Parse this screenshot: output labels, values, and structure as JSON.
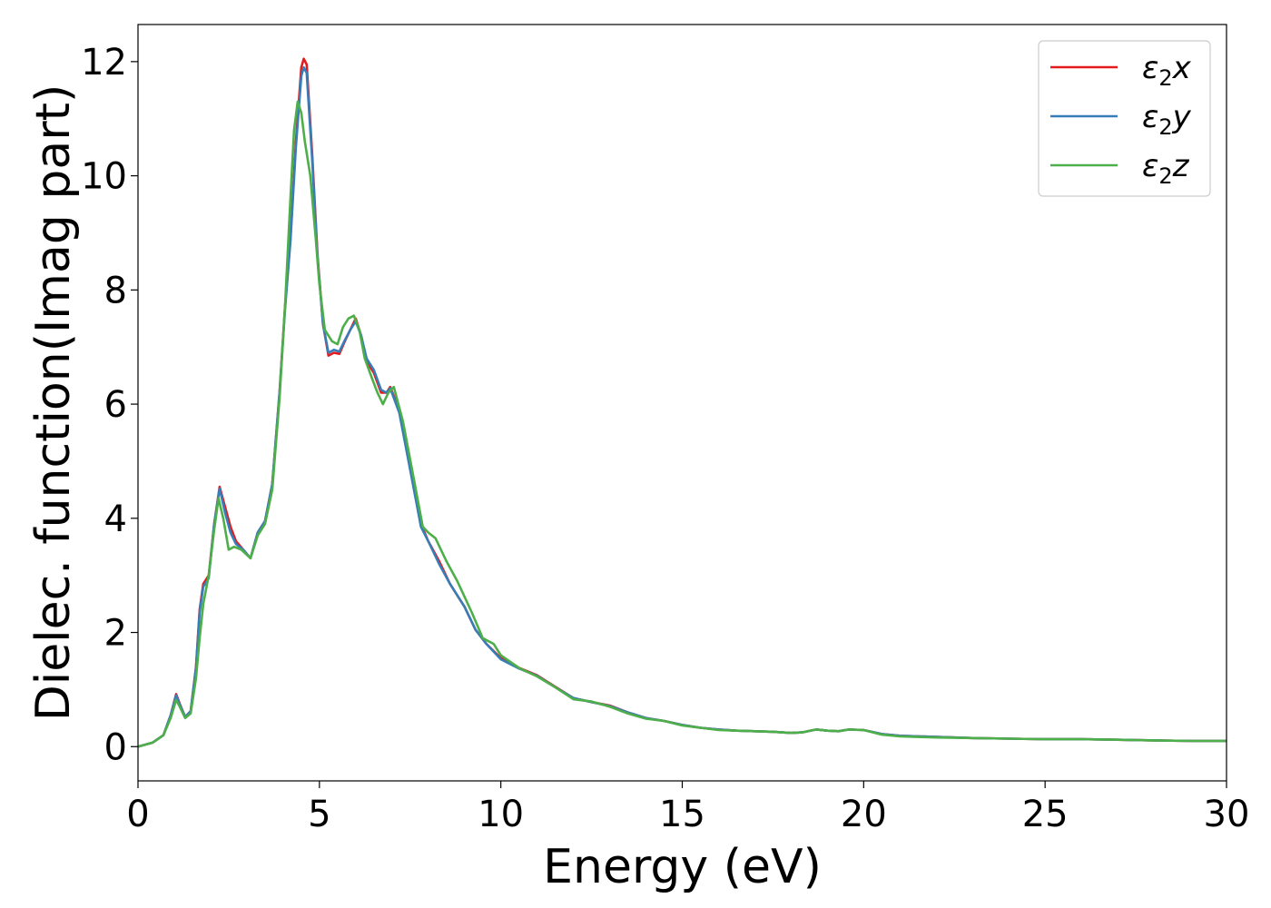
{
  "chart_data": {
    "type": "line",
    "title": "",
    "xlabel": "Energy (eV)",
    "ylabel": "Dielec. function(Imag part)",
    "xlim": [
      0,
      30
    ],
    "ylim": [
      -0.6,
      12.65
    ],
    "xticks": [
      0,
      5,
      10,
      15,
      20,
      25,
      30
    ],
    "yticks": [
      0,
      2,
      4,
      6,
      8,
      10,
      12
    ],
    "grid": false,
    "legend_position": "top-right",
    "series": [
      {
        "name": "ε₂x",
        "legend_base": "ε",
        "legend_sub": "2",
        "legend_var": "x",
        "color": "#e41a1c",
        "points": [
          [
            0,
            0.0
          ],
          [
            0.4,
            0.07
          ],
          [
            0.7,
            0.2
          ],
          [
            0.9,
            0.55
          ],
          [
            1.05,
            0.92
          ],
          [
            1.15,
            0.75
          ],
          [
            1.3,
            0.52
          ],
          [
            1.45,
            0.62
          ],
          [
            1.6,
            1.4
          ],
          [
            1.7,
            2.4
          ],
          [
            1.8,
            2.85
          ],
          [
            1.95,
            3.0
          ],
          [
            2.1,
            3.9
          ],
          [
            2.25,
            4.55
          ],
          [
            2.4,
            4.2
          ],
          [
            2.55,
            3.85
          ],
          [
            2.7,
            3.6
          ],
          [
            2.9,
            3.45
          ],
          [
            3.1,
            3.3
          ],
          [
            3.3,
            3.75
          ],
          [
            3.5,
            3.95
          ],
          [
            3.7,
            4.6
          ],
          [
            3.9,
            6.2
          ],
          [
            4.05,
            7.7
          ],
          [
            4.2,
            8.9
          ],
          [
            4.35,
            10.6
          ],
          [
            4.5,
            11.9
          ],
          [
            4.57,
            12.05
          ],
          [
            4.65,
            11.95
          ],
          [
            4.8,
            10.4
          ],
          [
            4.95,
            8.6
          ],
          [
            5.1,
            7.4
          ],
          [
            5.25,
            6.85
          ],
          [
            5.4,
            6.9
          ],
          [
            5.55,
            6.88
          ],
          [
            5.7,
            7.1
          ],
          [
            5.85,
            7.3
          ],
          [
            6.0,
            7.5
          ],
          [
            6.15,
            7.2
          ],
          [
            6.3,
            6.75
          ],
          [
            6.5,
            6.55
          ],
          [
            6.7,
            6.2
          ],
          [
            6.85,
            6.2
          ],
          [
            6.95,
            6.3
          ],
          [
            7.2,
            5.9
          ],
          [
            7.5,
            4.9
          ],
          [
            7.8,
            3.9
          ],
          [
            8.0,
            3.6
          ],
          [
            8.3,
            3.25
          ],
          [
            8.6,
            2.85
          ],
          [
            9.0,
            2.45
          ],
          [
            9.3,
            2.05
          ],
          [
            9.6,
            1.8
          ],
          [
            10.0,
            1.55
          ],
          [
            10.5,
            1.38
          ],
          [
            11.0,
            1.25
          ],
          [
            11.5,
            1.05
          ],
          [
            12.0,
            0.85
          ],
          [
            12.5,
            0.78
          ],
          [
            13.0,
            0.72
          ],
          [
            13.5,
            0.6
          ],
          [
            14.0,
            0.5
          ],
          [
            14.5,
            0.45
          ],
          [
            15.0,
            0.38
          ],
          [
            15.5,
            0.33
          ],
          [
            16.0,
            0.3
          ],
          [
            16.5,
            0.28
          ],
          [
            17.0,
            0.27
          ],
          [
            17.5,
            0.26
          ],
          [
            18.0,
            0.24
          ],
          [
            18.3,
            0.25
          ],
          [
            18.7,
            0.3
          ],
          [
            19.0,
            0.28
          ],
          [
            19.3,
            0.27
          ],
          [
            19.6,
            0.3
          ],
          [
            20.0,
            0.29
          ],
          [
            20.5,
            0.22
          ],
          [
            21.0,
            0.19
          ],
          [
            22.0,
            0.17
          ],
          [
            23.0,
            0.15
          ],
          [
            24.0,
            0.14
          ],
          [
            25.0,
            0.13
          ],
          [
            26.0,
            0.13
          ],
          [
            27.0,
            0.12
          ],
          [
            28.0,
            0.11
          ],
          [
            29.0,
            0.1
          ],
          [
            30.0,
            0.1
          ]
        ]
      },
      {
        "name": "ε₂y",
        "legend_base": "ε",
        "legend_sub": "2",
        "legend_var": "y",
        "color": "#377eb8",
        "points": [
          [
            0,
            0.0
          ],
          [
            0.4,
            0.07
          ],
          [
            0.7,
            0.2
          ],
          [
            0.9,
            0.55
          ],
          [
            1.05,
            0.9
          ],
          [
            1.15,
            0.74
          ],
          [
            1.3,
            0.52
          ],
          [
            1.45,
            0.62
          ],
          [
            1.6,
            1.38
          ],
          [
            1.7,
            2.35
          ],
          [
            1.8,
            2.8
          ],
          [
            1.95,
            2.95
          ],
          [
            2.1,
            3.9
          ],
          [
            2.25,
            4.52
          ],
          [
            2.4,
            4.1
          ],
          [
            2.55,
            3.75
          ],
          [
            2.7,
            3.55
          ],
          [
            2.9,
            3.45
          ],
          [
            3.1,
            3.3
          ],
          [
            3.3,
            3.75
          ],
          [
            3.5,
            3.95
          ],
          [
            3.7,
            4.6
          ],
          [
            3.9,
            6.2
          ],
          [
            4.05,
            7.65
          ],
          [
            4.2,
            8.85
          ],
          [
            4.35,
            10.5
          ],
          [
            4.5,
            11.75
          ],
          [
            4.57,
            11.9
          ],
          [
            4.65,
            11.8
          ],
          [
            4.8,
            10.3
          ],
          [
            4.95,
            8.55
          ],
          [
            5.1,
            7.4
          ],
          [
            5.25,
            6.9
          ],
          [
            5.4,
            6.95
          ],
          [
            5.55,
            6.92
          ],
          [
            5.7,
            7.12
          ],
          [
            5.85,
            7.3
          ],
          [
            6.0,
            7.45
          ],
          [
            6.15,
            7.2
          ],
          [
            6.3,
            6.8
          ],
          [
            6.5,
            6.6
          ],
          [
            6.7,
            6.25
          ],
          [
            6.85,
            6.2
          ],
          [
            6.95,
            6.28
          ],
          [
            7.2,
            5.85
          ],
          [
            7.5,
            4.85
          ],
          [
            7.8,
            3.85
          ],
          [
            8.0,
            3.6
          ],
          [
            8.3,
            3.2
          ],
          [
            8.6,
            2.85
          ],
          [
            9.0,
            2.45
          ],
          [
            9.3,
            2.05
          ],
          [
            9.6,
            1.8
          ],
          [
            10.0,
            1.53
          ],
          [
            10.5,
            1.37
          ],
          [
            11.0,
            1.24
          ],
          [
            11.5,
            1.04
          ],
          [
            12.0,
            0.85
          ],
          [
            12.5,
            0.78
          ],
          [
            13.0,
            0.71
          ],
          [
            13.5,
            0.6
          ],
          [
            14.0,
            0.5
          ],
          [
            14.5,
            0.45
          ],
          [
            15.0,
            0.38
          ],
          [
            15.5,
            0.33
          ],
          [
            16.0,
            0.3
          ],
          [
            16.5,
            0.28
          ],
          [
            17.0,
            0.27
          ],
          [
            17.5,
            0.26
          ],
          [
            18.0,
            0.24
          ],
          [
            18.3,
            0.25
          ],
          [
            18.7,
            0.3
          ],
          [
            19.0,
            0.28
          ],
          [
            19.3,
            0.27
          ],
          [
            19.6,
            0.3
          ],
          [
            20.0,
            0.29
          ],
          [
            20.5,
            0.22
          ],
          [
            21.0,
            0.19
          ],
          [
            22.0,
            0.17
          ],
          [
            23.0,
            0.15
          ],
          [
            24.0,
            0.14
          ],
          [
            25.0,
            0.13
          ],
          [
            26.0,
            0.13
          ],
          [
            27.0,
            0.12
          ],
          [
            28.0,
            0.11
          ],
          [
            29.0,
            0.1
          ],
          [
            30.0,
            0.1
          ]
        ]
      },
      {
        "name": "ε₂z",
        "legend_base": "ε",
        "legend_sub": "2",
        "legend_var": "z",
        "color": "#4daf4a",
        "points": [
          [
            0,
            0.0
          ],
          [
            0.4,
            0.07
          ],
          [
            0.7,
            0.2
          ],
          [
            0.9,
            0.5
          ],
          [
            1.05,
            0.82
          ],
          [
            1.15,
            0.7
          ],
          [
            1.3,
            0.5
          ],
          [
            1.45,
            0.58
          ],
          [
            1.6,
            1.2
          ],
          [
            1.7,
            1.9
          ],
          [
            1.8,
            2.5
          ],
          [
            1.95,
            3.0
          ],
          [
            2.1,
            3.8
          ],
          [
            2.22,
            4.35
          ],
          [
            2.35,
            4.0
          ],
          [
            2.5,
            3.45
          ],
          [
            2.65,
            3.5
          ],
          [
            2.85,
            3.45
          ],
          [
            3.1,
            3.3
          ],
          [
            3.3,
            3.7
          ],
          [
            3.5,
            3.9
          ],
          [
            3.7,
            4.5
          ],
          [
            3.9,
            6.1
          ],
          [
            4.05,
            7.7
          ],
          [
            4.2,
            9.6
          ],
          [
            4.3,
            10.8
          ],
          [
            4.4,
            11.3
          ],
          [
            4.5,
            11.1
          ],
          [
            4.6,
            10.6
          ],
          [
            4.75,
            10.0
          ],
          [
            4.9,
            8.9
          ],
          [
            5.0,
            8.1
          ],
          [
            5.15,
            7.3
          ],
          [
            5.35,
            7.1
          ],
          [
            5.5,
            7.05
          ],
          [
            5.65,
            7.35
          ],
          [
            5.8,
            7.5
          ],
          [
            5.95,
            7.55
          ],
          [
            6.1,
            7.3
          ],
          [
            6.25,
            6.8
          ],
          [
            6.45,
            6.45
          ],
          [
            6.6,
            6.2
          ],
          [
            6.75,
            6.0
          ],
          [
            6.9,
            6.2
          ],
          [
            7.05,
            6.3
          ],
          [
            7.3,
            5.7
          ],
          [
            7.6,
            4.7
          ],
          [
            7.85,
            3.85
          ],
          [
            8.0,
            3.75
          ],
          [
            8.2,
            3.65
          ],
          [
            8.5,
            3.25
          ],
          [
            8.8,
            2.9
          ],
          [
            9.2,
            2.35
          ],
          [
            9.5,
            1.9
          ],
          [
            9.8,
            1.8
          ],
          [
            10.0,
            1.6
          ],
          [
            10.5,
            1.38
          ],
          [
            11.0,
            1.23
          ],
          [
            11.5,
            1.04
          ],
          [
            12.0,
            0.83
          ],
          [
            12.5,
            0.79
          ],
          [
            13.0,
            0.7
          ],
          [
            13.5,
            0.58
          ],
          [
            14.0,
            0.49
          ],
          [
            14.5,
            0.45
          ],
          [
            15.0,
            0.37
          ],
          [
            15.5,
            0.33
          ],
          [
            16.0,
            0.29
          ],
          [
            16.5,
            0.28
          ],
          [
            17.0,
            0.27
          ],
          [
            17.5,
            0.26
          ],
          [
            18.0,
            0.24
          ],
          [
            18.3,
            0.25
          ],
          [
            18.7,
            0.3
          ],
          [
            19.0,
            0.28
          ],
          [
            19.3,
            0.27
          ],
          [
            19.6,
            0.3
          ],
          [
            20.0,
            0.29
          ],
          [
            20.5,
            0.21
          ],
          [
            21.0,
            0.18
          ],
          [
            22.0,
            0.16
          ],
          [
            23.0,
            0.15
          ],
          [
            24.0,
            0.14
          ],
          [
            25.0,
            0.13
          ],
          [
            26.0,
            0.13
          ],
          [
            27.0,
            0.12
          ],
          [
            28.0,
            0.11
          ],
          [
            29.0,
            0.1
          ],
          [
            30.0,
            0.1
          ]
        ]
      }
    ]
  }
}
